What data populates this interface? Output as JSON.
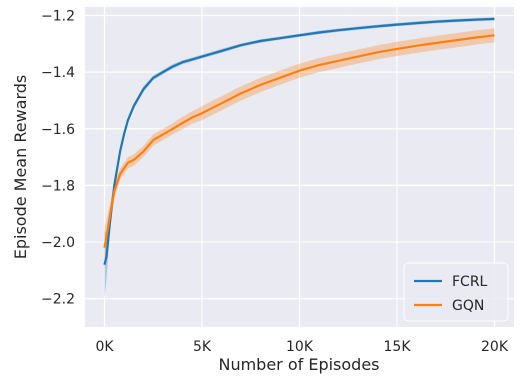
{
  "chart_data": {
    "type": "line",
    "title": "",
    "xlabel": "Number of Episodes",
    "ylabel": "Episode Mean Rewards",
    "xlim": [
      -1000,
      21000
    ],
    "ylim": [
      -2.3,
      -1.17
    ],
    "xticks": [
      {
        "value": 0,
        "label": "0K"
      },
      {
        "value": 5000,
        "label": "5K"
      },
      {
        "value": 10000,
        "label": "10K"
      },
      {
        "value": 15000,
        "label": "15K"
      },
      {
        "value": 20000,
        "label": "20K"
      }
    ],
    "yticks": [
      {
        "value": -2.2,
        "label": "−2.2"
      },
      {
        "value": -2.0,
        "label": "−2.0"
      },
      {
        "value": -1.8,
        "label": "−1.8"
      },
      {
        "value": -1.6,
        "label": "−1.6"
      },
      {
        "value": -1.4,
        "label": "−1.4"
      },
      {
        "value": -1.2,
        "label": "−1.2"
      }
    ],
    "grid": true,
    "legend_position": "lower-right",
    "colors": {
      "background": "#eaeaf2",
      "grid": "#ffffff"
    },
    "series": [
      {
        "name": "FCRL",
        "color": "#1f77b4",
        "x": [
          0,
          100,
          300,
          500,
          800,
          1000,
          1200,
          1500,
          2000,
          2500,
          3000,
          3500,
          4000,
          4500,
          5000,
          6000,
          7000,
          8000,
          9000,
          10000,
          11000,
          12000,
          13000,
          14000,
          15000,
          16000,
          17000,
          18000,
          19000,
          20000
        ],
        "y": [
          -2.08,
          -2.05,
          -1.92,
          -1.8,
          -1.68,
          -1.62,
          -1.57,
          -1.52,
          -1.46,
          -1.42,
          -1.4,
          -1.38,
          -1.365,
          -1.355,
          -1.345,
          -1.325,
          -1.305,
          -1.29,
          -1.28,
          -1.27,
          -1.26,
          -1.252,
          -1.245,
          -1.238,
          -1.232,
          -1.227,
          -1.222,
          -1.218,
          -1.215,
          -1.212
        ],
        "band": [
          0.12,
          0.08,
          0.03,
          0.02,
          0.015,
          0.012,
          0.01,
          0.01,
          0.01,
          0.008,
          0.008,
          0.008,
          0.007,
          0.007,
          0.007,
          0.007,
          0.006,
          0.006,
          0.006,
          0.006,
          0.006,
          0.006,
          0.006,
          0.006,
          0.006,
          0.006,
          0.006,
          0.006,
          0.006,
          0.006
        ]
      },
      {
        "name": "GQN",
        "color": "#ff7f0e",
        "x": [
          0,
          100,
          300,
          500,
          800,
          1000,
          1200,
          1500,
          2000,
          2500,
          3000,
          3500,
          4000,
          4500,
          5000,
          6000,
          7000,
          8000,
          9000,
          10000,
          11000,
          12000,
          13000,
          14000,
          15000,
          16000,
          17000,
          18000,
          19000,
          20000
        ],
        "y": [
          -2.02,
          -1.98,
          -1.9,
          -1.82,
          -1.76,
          -1.74,
          -1.72,
          -1.71,
          -1.68,
          -1.64,
          -1.62,
          -1.6,
          -1.58,
          -1.56,
          -1.545,
          -1.51,
          -1.475,
          -1.445,
          -1.42,
          -1.395,
          -1.375,
          -1.36,
          -1.345,
          -1.33,
          -1.318,
          -1.307,
          -1.297,
          -1.288,
          -1.278,
          -1.27
        ],
        "band": [
          0.07,
          0.06,
          0.04,
          0.03,
          0.02,
          0.02,
          0.02,
          0.02,
          0.02,
          0.02,
          0.02,
          0.02,
          0.022,
          0.022,
          0.025,
          0.025,
          0.025,
          0.025,
          0.025,
          0.025,
          0.025,
          0.025,
          0.025,
          0.025,
          0.025,
          0.025,
          0.025,
          0.025,
          0.025,
          0.025
        ]
      }
    ]
  }
}
